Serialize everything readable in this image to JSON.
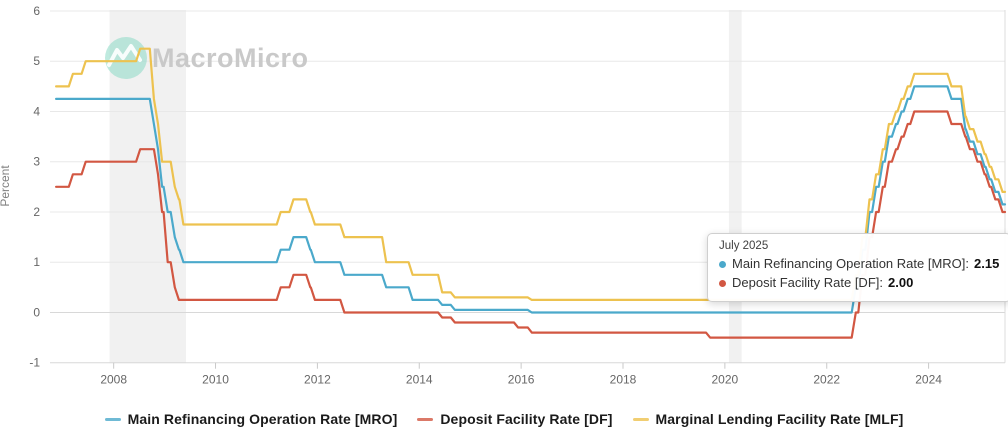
{
  "watermark": {
    "brand": "MacroMicro"
  },
  "tooltip": {
    "date": "July 2025",
    "rows": [
      {
        "label": "Main Refinancing Operation Rate [MRO]:",
        "value": "2.15",
        "color": "#4BA9CB"
      },
      {
        "label": "Deposit Facility Rate [DF]:",
        "value": "2.00",
        "color": "#D25742"
      }
    ]
  },
  "chart_data": {
    "type": "line",
    "title": "",
    "xlabel": "",
    "ylabel": "Percent",
    "ylim": [
      -1,
      6
    ],
    "yticks": [
      6,
      5,
      4,
      3,
      2,
      1,
      0,
      -1
    ],
    "xlim": [
      2006.75,
      2025.5
    ],
    "xticks": [
      2008,
      2010,
      2012,
      2014,
      2016,
      2018,
      2020,
      2022,
      2024
    ],
    "grid": "horizontal",
    "legend_position": "bottom",
    "start": 2006.87,
    "end": 2025.5,
    "recession_bands": [
      [
        2007.92,
        2009.42
      ],
      [
        2020.08,
        2020.33
      ]
    ],
    "series": [
      {
        "key": "mro",
        "name": "Main Refinancing Operation Rate [MRO]",
        "color": "#4BA9CB",
        "points": [
          [
            2006.87,
            4.25
          ],
          [
            2008.79,
            3.75
          ],
          [
            2008.87,
            3.25
          ],
          [
            2008.95,
            2.5
          ],
          [
            2009.06,
            2.0
          ],
          [
            2009.2,
            1.5
          ],
          [
            2009.28,
            1.25
          ],
          [
            2009.37,
            1.0
          ],
          [
            2011.28,
            1.25
          ],
          [
            2011.53,
            1.5
          ],
          [
            2011.86,
            1.25
          ],
          [
            2011.95,
            1.0
          ],
          [
            2012.53,
            0.75
          ],
          [
            2013.35,
            0.5
          ],
          [
            2013.87,
            0.25
          ],
          [
            2014.45,
            0.15
          ],
          [
            2014.7,
            0.05
          ],
          [
            2016.21,
            0.0
          ],
          [
            2022.57,
            0.5
          ],
          [
            2022.7,
            1.25
          ],
          [
            2022.84,
            2.0
          ],
          [
            2022.97,
            2.5
          ],
          [
            2023.1,
            3.0
          ],
          [
            2023.22,
            3.5
          ],
          [
            2023.36,
            3.75
          ],
          [
            2023.47,
            4.0
          ],
          [
            2023.59,
            4.25
          ],
          [
            2023.72,
            4.5
          ],
          [
            2024.45,
            4.25
          ],
          [
            2024.72,
            3.65
          ],
          [
            2024.81,
            3.4
          ],
          [
            2024.96,
            3.15
          ],
          [
            2025.1,
            2.9
          ],
          [
            2025.2,
            2.65
          ],
          [
            2025.31,
            2.4
          ],
          [
            2025.45,
            2.15
          ]
        ]
      },
      {
        "key": "df",
        "name": "Deposit Facility Rate [DF]",
        "color": "#D25742",
        "points": [
          [
            2006.87,
            2.5
          ],
          [
            2007.2,
            2.75
          ],
          [
            2007.45,
            3.0
          ],
          [
            2008.52,
            3.25
          ],
          [
            2008.87,
            2.75
          ],
          [
            2008.95,
            2.0
          ],
          [
            2009.06,
            1.0
          ],
          [
            2009.2,
            0.5
          ],
          [
            2009.28,
            0.25
          ],
          [
            2011.28,
            0.5
          ],
          [
            2011.53,
            0.75
          ],
          [
            2011.86,
            0.5
          ],
          [
            2011.95,
            0.25
          ],
          [
            2012.53,
            0.0
          ],
          [
            2014.45,
            -0.1
          ],
          [
            2014.7,
            -0.2
          ],
          [
            2015.94,
            -0.3
          ],
          [
            2016.21,
            -0.4
          ],
          [
            2019.71,
            -0.5
          ],
          [
            2022.57,
            0.0
          ],
          [
            2022.7,
            0.75
          ],
          [
            2022.84,
            1.5
          ],
          [
            2022.97,
            2.0
          ],
          [
            2023.1,
            2.5
          ],
          [
            2023.22,
            3.0
          ],
          [
            2023.36,
            3.25
          ],
          [
            2023.47,
            3.5
          ],
          [
            2023.59,
            3.75
          ],
          [
            2023.72,
            4.0
          ],
          [
            2024.45,
            3.75
          ],
          [
            2024.72,
            3.5
          ],
          [
            2024.81,
            3.25
          ],
          [
            2024.96,
            3.0
          ],
          [
            2025.1,
            2.75
          ],
          [
            2025.2,
            2.5
          ],
          [
            2025.31,
            2.25
          ],
          [
            2025.45,
            2.0
          ]
        ]
      },
      {
        "key": "mlf",
        "name": "Marginal Lending Facility Rate [MLF]",
        "color": "#EDC24F",
        "points": [
          [
            2006.87,
            4.5
          ],
          [
            2007.2,
            4.75
          ],
          [
            2007.45,
            5.0
          ],
          [
            2008.52,
            5.25
          ],
          [
            2008.79,
            4.25
          ],
          [
            2008.87,
            3.75
          ],
          [
            2008.95,
            3.0
          ],
          [
            2009.2,
            2.5
          ],
          [
            2009.28,
            2.25
          ],
          [
            2009.37,
            1.75
          ],
          [
            2011.28,
            2.0
          ],
          [
            2011.53,
            2.25
          ],
          [
            2011.86,
            2.0
          ],
          [
            2011.95,
            1.75
          ],
          [
            2012.53,
            1.5
          ],
          [
            2013.35,
            1.0
          ],
          [
            2013.87,
            0.75
          ],
          [
            2014.45,
            0.4
          ],
          [
            2014.7,
            0.3
          ],
          [
            2016.21,
            0.25
          ],
          [
            2022.57,
            0.75
          ],
          [
            2022.7,
            1.5
          ],
          [
            2022.84,
            2.25
          ],
          [
            2022.97,
            2.75
          ],
          [
            2023.1,
            3.25
          ],
          [
            2023.22,
            3.75
          ],
          [
            2023.36,
            4.0
          ],
          [
            2023.47,
            4.25
          ],
          [
            2023.59,
            4.5
          ],
          [
            2023.72,
            4.75
          ],
          [
            2024.45,
            4.5
          ],
          [
            2024.72,
            3.9
          ],
          [
            2024.81,
            3.65
          ],
          [
            2024.96,
            3.4
          ],
          [
            2025.1,
            3.15
          ],
          [
            2025.2,
            2.9
          ],
          [
            2025.31,
            2.65
          ],
          [
            2025.45,
            2.4
          ]
        ]
      }
    ],
    "colors": {
      "grid": "#e8e8e8",
      "grid_dark": "#d8d8d8",
      "tick": "#c9c9c9",
      "axis_text": "#666666",
      "band": "#f1f1f1",
      "crosshair": "#dcdcdc"
    }
  }
}
